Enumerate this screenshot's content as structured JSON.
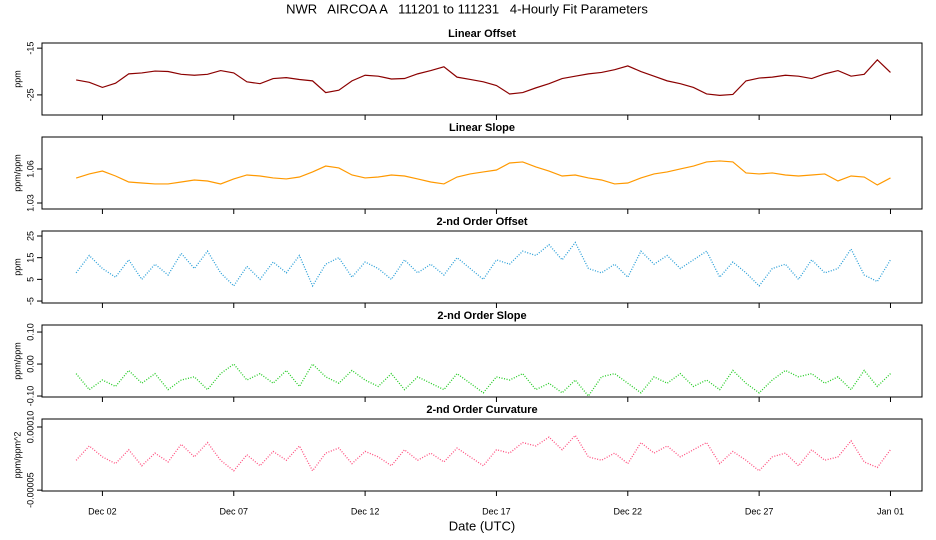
{
  "title": "NWR   AIRCOA A   111201 to 111231   4-Hourly Fit Parameters",
  "chart_data": [
    {
      "type": "line",
      "title": "Linear Offset",
      "ylabel": "ppm",
      "color": "#8b0000",
      "linestyle": "solid",
      "x": [
        1,
        1.5,
        2,
        2.5,
        3,
        3.5,
        4,
        4.5,
        5,
        5.5,
        6,
        6.5,
        7,
        7.5,
        8,
        8.5,
        9,
        9.5,
        10,
        10.5,
        11,
        11.5,
        12,
        12.5,
        13,
        13.5,
        14,
        14.5,
        15,
        15.5,
        16,
        16.5,
        17,
        17.5,
        18,
        18.5,
        19,
        19.5,
        20,
        20.5,
        21,
        21.5,
        22,
        22.5,
        23,
        23.5,
        24,
        24.5,
        25,
        25.5,
        26,
        26.5,
        27,
        27.5,
        28,
        28.5,
        29,
        29.5,
        30,
        30.5,
        31,
        31.5,
        32
      ],
      "values": [
        -21.8,
        -22.3,
        -23.4,
        -22.5,
        -20.5,
        -20.3,
        -19.9,
        -20.0,
        -20.6,
        -20.8,
        -20.6,
        -19.8,
        -20.3,
        -22.2,
        -22.6,
        -21.5,
        -21.3,
        -21.7,
        -22.0,
        -24.5,
        -24.0,
        -22.0,
        -20.8,
        -21.0,
        -21.6,
        -21.5,
        -20.5,
        -19.8,
        -19.0,
        -21.2,
        -21.7,
        -22.2,
        -23.0,
        -24.8,
        -24.5,
        -23.5,
        -22.6,
        -21.5,
        -21.0,
        -20.5,
        -20.2,
        -19.6,
        -18.8,
        -20.0,
        -21.0,
        -22.0,
        -22.6,
        -23.4,
        -24.8,
        -25.1,
        -24.9,
        -22.0,
        -21.4,
        -21.2,
        -20.8,
        -21.0,
        -21.5,
        -20.5,
        -19.8,
        -21.0,
        -20.6,
        -17.5,
        -20.2
      ],
      "xlim": [
        -0.3,
        33.2
      ],
      "xticks": [
        2,
        7,
        12,
        17,
        22,
        27,
        32
      ],
      "ylim": [
        -29.3,
        -13.9
      ],
      "yticks": [
        -15,
        -25
      ]
    },
    {
      "type": "line",
      "title": "Linear Slope",
      "ylabel": "ppm/ppm",
      "color": "#ff9900",
      "linestyle": "solid",
      "x": [
        1,
        1.5,
        2,
        2.5,
        3,
        3.5,
        4,
        4.5,
        5,
        5.5,
        6,
        6.5,
        7,
        7.5,
        8,
        8.5,
        9,
        9.5,
        10,
        10.5,
        11,
        11.5,
        12,
        12.5,
        13,
        13.5,
        14,
        14.5,
        15,
        15.5,
        16,
        16.5,
        17,
        17.5,
        18,
        18.5,
        19,
        19.5,
        20,
        20.5,
        21,
        21.5,
        22,
        22.5,
        23,
        23.5,
        24,
        24.5,
        25,
        25.5,
        26,
        26.5,
        27,
        27.5,
        28,
        28.5,
        29,
        29.5,
        30,
        30.5,
        31,
        31.5,
        32
      ],
      "values": [
        1.052,
        1.0556,
        1.0582,
        1.0538,
        1.0485,
        1.0476,
        1.0468,
        1.0468,
        1.0485,
        1.0503,
        1.0494,
        1.0468,
        1.0512,
        1.0547,
        1.0538,
        1.0521,
        1.0512,
        1.0529,
        1.0574,
        1.0626,
        1.0609,
        1.0547,
        1.0521,
        1.0529,
        1.0547,
        1.0538,
        1.0512,
        1.0485,
        1.0468,
        1.0529,
        1.0556,
        1.0574,
        1.0591,
        1.0653,
        1.0662,
        1.0618,
        1.0582,
        1.0538,
        1.0547,
        1.0521,
        1.0503,
        1.0468,
        1.0476,
        1.0521,
        1.0556,
        1.0574,
        1.06,
        1.0626,
        1.0662,
        1.0671,
        1.0662,
        1.0565,
        1.0556,
        1.0565,
        1.0547,
        1.0538,
        1.0547,
        1.0556,
        1.0494,
        1.0538,
        1.0529,
        1.0459,
        1.0521
      ],
      "xlim": [
        -0.3,
        33.2
      ],
      "xticks": [
        2,
        7,
        12,
        17,
        22,
        27,
        32
      ],
      "ylim": [
        1.0247,
        1.0882
      ],
      "yticks": [
        1.06,
        1.03
      ]
    },
    {
      "type": "line",
      "title": "2-nd Order Offset",
      "ylabel": "ppm",
      "color": "#2a9fd8",
      "linestyle": "dotted",
      "x": [
        1,
        1.5,
        2,
        2.5,
        3,
        3.5,
        4,
        4.5,
        5,
        5.5,
        6,
        6.5,
        7,
        7.5,
        8,
        8.5,
        9,
        9.5,
        10,
        10.5,
        11,
        11.5,
        12,
        12.5,
        13,
        13.5,
        14,
        14.5,
        15,
        15.5,
        16,
        16.5,
        17,
        17.5,
        18,
        18.5,
        19,
        19.5,
        20,
        20.5,
        21,
        21.5,
        22,
        22.5,
        23,
        23.5,
        24,
        24.5,
        25,
        25.5,
        26,
        26.5,
        27,
        27.5,
        28,
        28.5,
        29,
        29.5,
        30,
        30.5,
        31,
        31.5,
        32
      ],
      "values": [
        8,
        16,
        10,
        6,
        14,
        5,
        12,
        7,
        17,
        10,
        18,
        8,
        2,
        11,
        5,
        13,
        8,
        16,
        2,
        12,
        15,
        6,
        13,
        10,
        5,
        14,
        8,
        12,
        7,
        15,
        10,
        5,
        14,
        12,
        18,
        16,
        21,
        14,
        22,
        10,
        8,
        12,
        6,
        18,
        12,
        16,
        10,
        14,
        18,
        6,
        13,
        8,
        2,
        10,
        12,
        5,
        14,
        8,
        10,
        19,
        7,
        4,
        14
      ],
      "xlim": [
        -0.3,
        33.2
      ],
      "xticks": [
        2,
        7,
        12,
        17,
        22,
        27,
        32
      ],
      "ylim": [
        -5.9,
        27.3
      ],
      "yticks": [
        25,
        15,
        5,
        -5
      ]
    },
    {
      "type": "line",
      "title": "2-nd Order Slope",
      "ylabel": "ppm/ppm",
      "color": "#22cc22",
      "linestyle": "dotted",
      "x": [
        1,
        1.5,
        2,
        2.5,
        3,
        3.5,
        4,
        4.5,
        5,
        5.5,
        6,
        6.5,
        7,
        7.5,
        8,
        8.5,
        9,
        9.5,
        10,
        10.5,
        11,
        11.5,
        12,
        12.5,
        13,
        13.5,
        14,
        14.5,
        15,
        15.5,
        16,
        16.5,
        17,
        17.5,
        18,
        18.5,
        19,
        19.5,
        20,
        20.5,
        21,
        21.5,
        22,
        22.5,
        23,
        23.5,
        24,
        24.5,
        25,
        25.5,
        26,
        26.5,
        27,
        27.5,
        28,
        28.5,
        29,
        29.5,
        30,
        30.5,
        31,
        31.5,
        32
      ],
      "values": [
        -0.03,
        -0.08,
        -0.05,
        -0.07,
        -0.02,
        -0.06,
        -0.03,
        -0.08,
        -0.05,
        -0.04,
        -0.08,
        -0.03,
        0.0,
        -0.05,
        -0.03,
        -0.06,
        -0.02,
        -0.07,
        0.0,
        -0.04,
        -0.06,
        -0.02,
        -0.05,
        -0.07,
        -0.03,
        -0.08,
        -0.04,
        -0.06,
        -0.08,
        -0.03,
        -0.06,
        -0.09,
        -0.04,
        -0.05,
        -0.03,
        -0.08,
        -0.06,
        -0.09,
        -0.05,
        -0.1,
        -0.04,
        -0.03,
        -0.06,
        -0.09,
        -0.04,
        -0.06,
        -0.03,
        -0.07,
        -0.05,
        -0.08,
        -0.02,
        -0.06,
        -0.09,
        -0.05,
        -0.02,
        -0.04,
        -0.03,
        -0.06,
        -0.04,
        -0.08,
        -0.02,
        -0.07,
        -0.03
      ],
      "xlim": [
        -0.3,
        33.2
      ],
      "xticks": [
        2,
        7,
        12,
        17,
        22,
        27,
        32
      ],
      "ylim": [
        -0.103,
        0.122
      ],
      "yticks": [
        {
          "value": 0.1,
          "label": "0.10"
        },
        {
          "value": 0,
          "label": "0.00"
        },
        {
          "value": -0.1,
          "label": "-0.10"
        }
      ]
    },
    {
      "type": "line",
      "title": "2-nd Order Curvature",
      "ylabel": "ppm/ppm^2",
      "xlabel": "Date (UTC)",
      "color": "#ff4f7f",
      "linestyle": "dotted",
      "x": [
        1,
        1.5,
        2,
        2.5,
        3,
        3.5,
        4,
        4.5,
        5,
        5.5,
        6,
        6.5,
        7,
        7.5,
        8,
        8.5,
        9,
        9.5,
        10,
        10.5,
        11,
        11.5,
        12,
        12.5,
        13,
        13.5,
        14,
        14.5,
        15,
        15.5,
        16,
        16.5,
        17,
        17.5,
        18,
        18.5,
        19,
        19.5,
        20,
        20.5,
        21,
        21.5,
        22,
        22.5,
        23,
        23.5,
        24,
        24.5,
        25,
        25.5,
        26,
        26.5,
        27,
        27.5,
        28,
        28.5,
        29,
        29.5,
        30,
        30.5,
        31,
        31.5,
        32
      ],
      "values": [
        2.1e-05,
        5.5e-05,
        2.9e-05,
        1.3e-05,
        4.6e-05,
        8e-06,
        3.8e-05,
        1.7e-05,
        5.9e-05,
        2.9e-05,
        6.3e-05,
        2.1e-05,
        -4e-06,
        3.4e-05,
        8e-06,
        4.2e-05,
        2.1e-05,
        5.5e-05,
        -4e-06,
        3.8e-05,
        5e-05,
        1.3e-05,
        4.2e-05,
        2.9e-05,
        8e-06,
        4.6e-05,
        2.1e-05,
        3.8e-05,
        1.7e-05,
        5e-05,
        2.9e-05,
        8e-06,
        4.6e-05,
        3.8e-05,
        6.3e-05,
        5.5e-05,
        7.6e-05,
        4.6e-05,
        8e-05,
        2.9e-05,
        2.1e-05,
        3.8e-05,
        1.3e-05,
        6.3e-05,
        3.8e-05,
        5.5e-05,
        2.9e-05,
        4.6e-05,
        6.3e-05,
        1.3e-05,
        4.2e-05,
        2.1e-05,
        -4e-06,
        2.9e-05,
        3.8e-05,
        8e-06,
        4.6e-05,
        2.1e-05,
        2.9e-05,
        6.7e-05,
        1.7e-05,
        4e-06,
        4.6e-05
      ],
      "xlim": [
        -0.3,
        33.2
      ],
      "xticks": [
        {
          "value": 2,
          "label": "Dec 02"
        },
        {
          "value": 7,
          "label": "Dec 07"
        },
        {
          "value": 12,
          "label": "Dec 12"
        },
        {
          "value": 17,
          "label": "Dec 17"
        },
        {
          "value": 22,
          "label": "Dec 22"
        },
        {
          "value": 27,
          "label": "Dec 27"
        },
        {
          "value": 32,
          "label": "Jan 01"
        }
      ],
      "ylim": [
        -5.2e-05,
        0.000119
      ],
      "yticks": [
        {
          "value": 0.0001,
          "label": "0.00010"
        },
        {
          "value": -5e-05,
          "label": "-0.00005"
        }
      ]
    }
  ]
}
